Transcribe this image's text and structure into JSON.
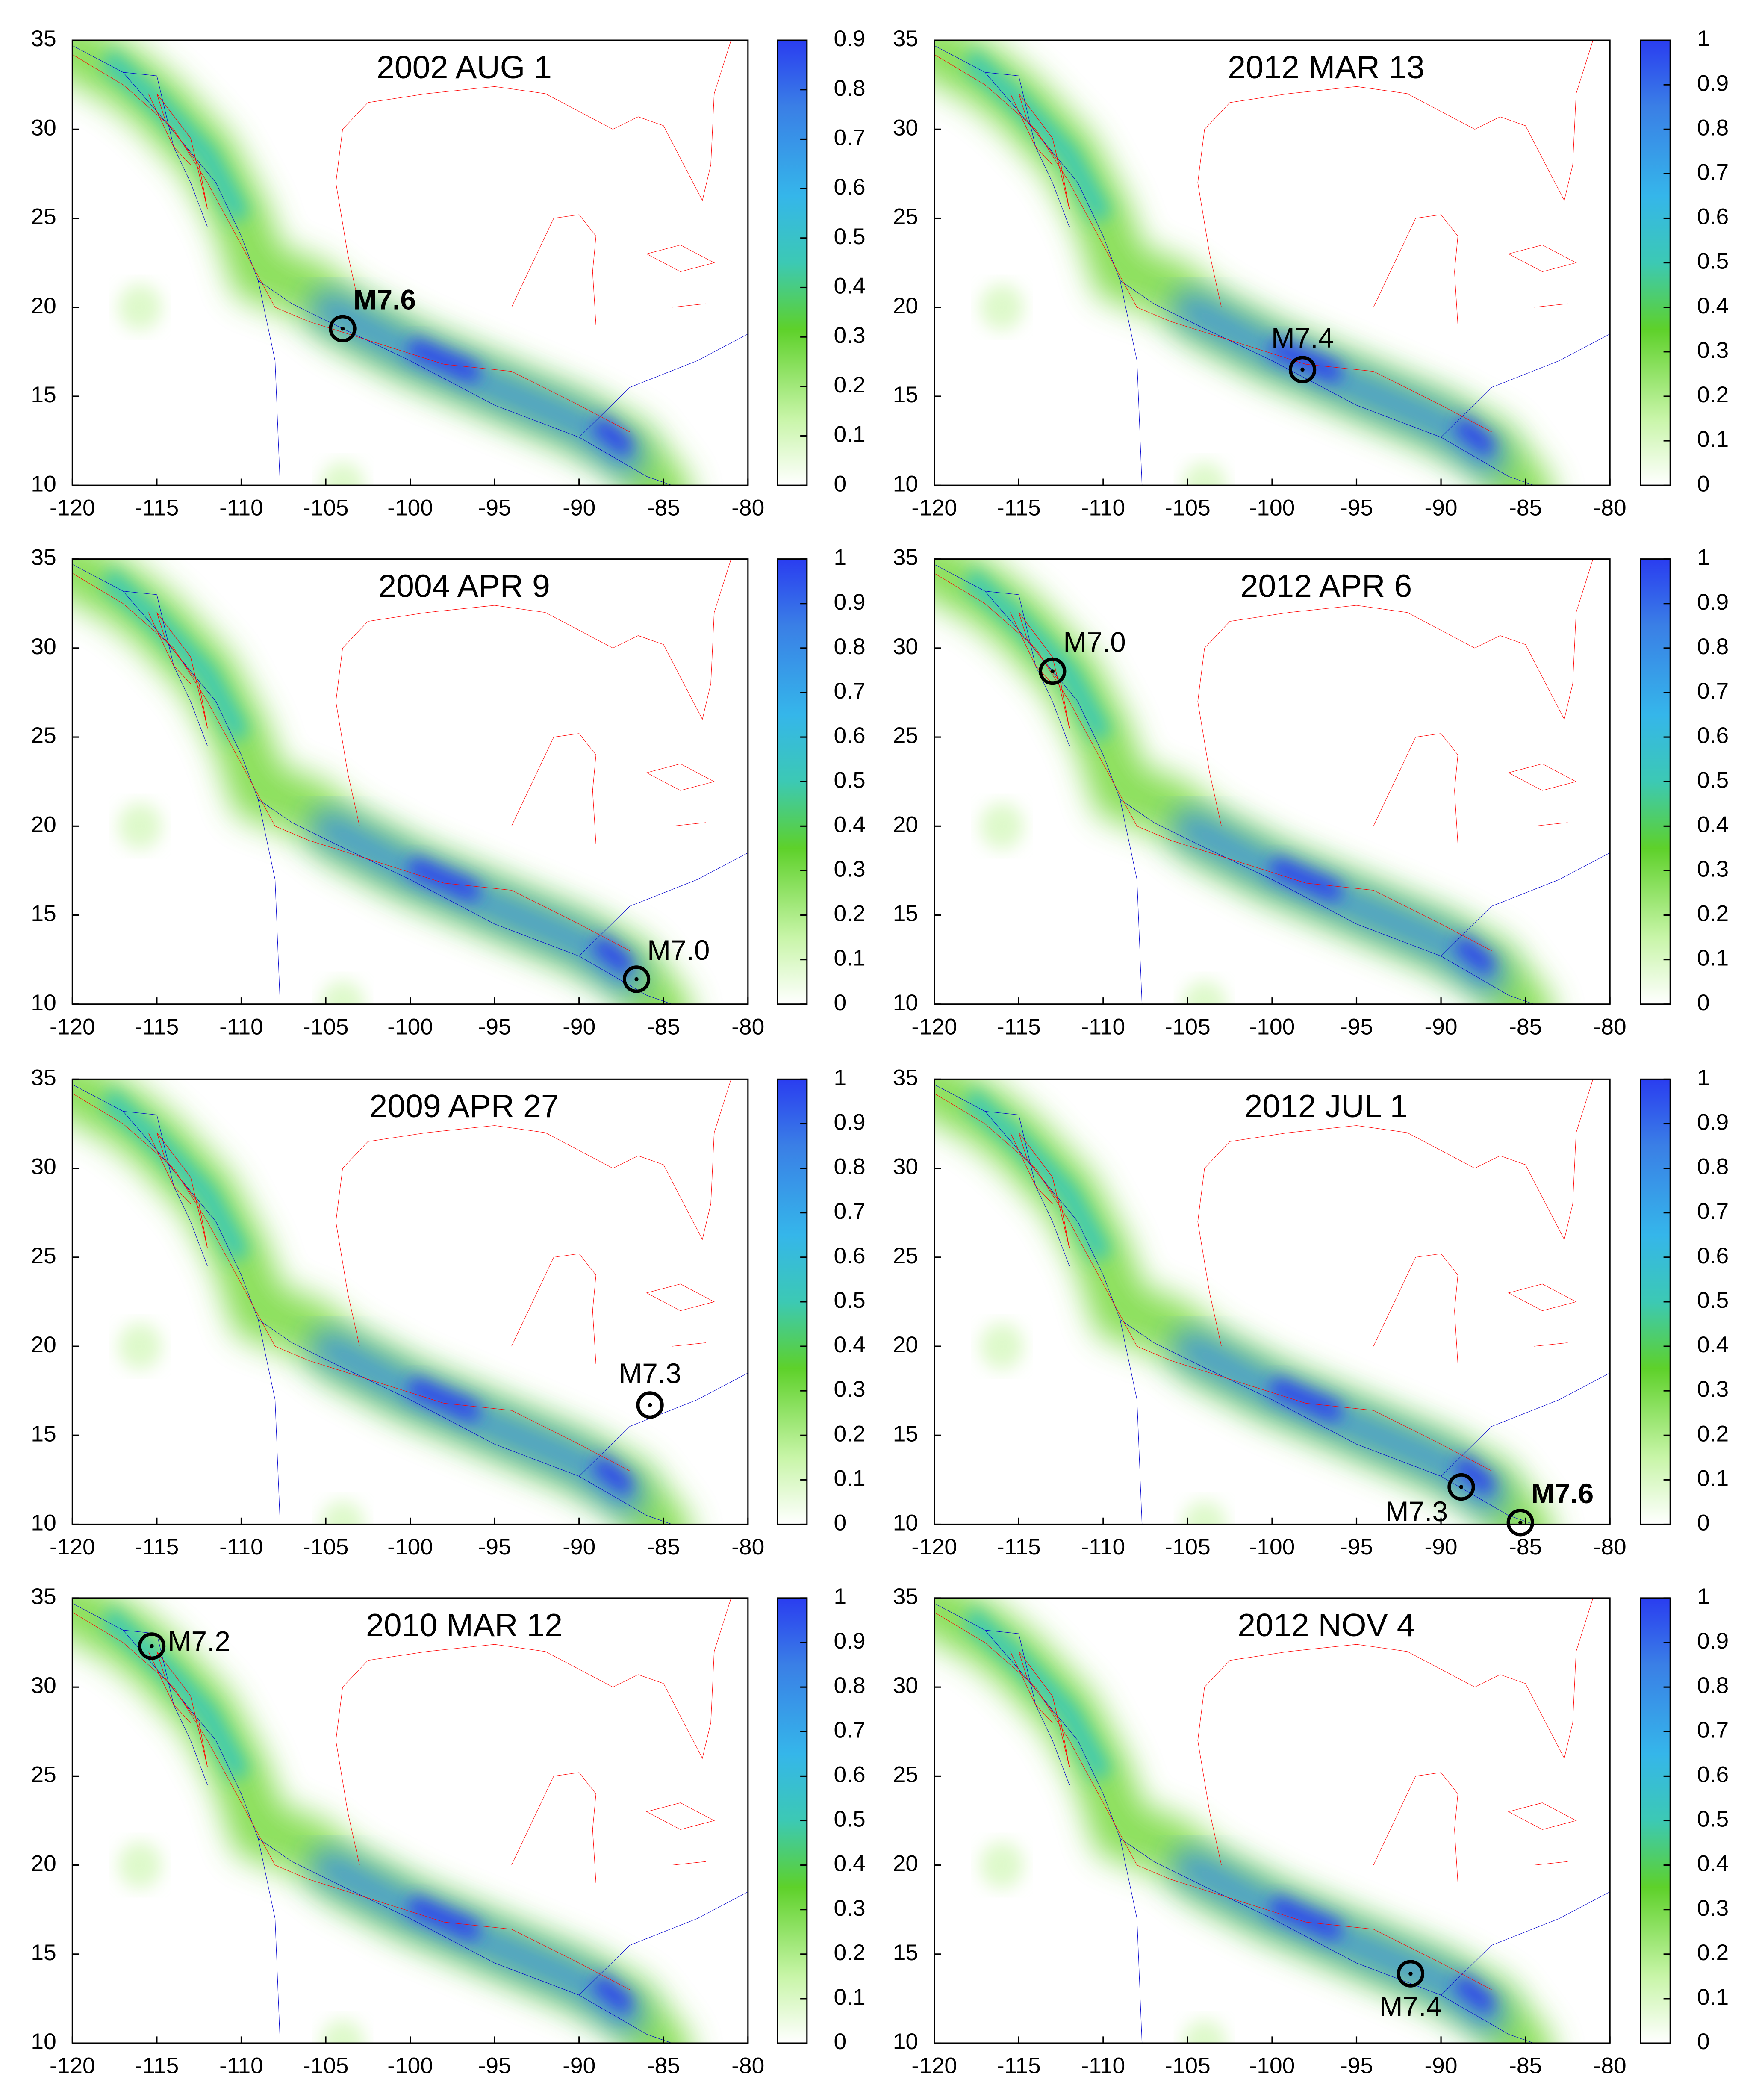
{
  "chart_data": [
    {
      "type": "heatmap-map",
      "title": "2002 AUG 1",
      "xlim": [
        -120,
        -80
      ],
      "ylim": [
        10,
        35
      ],
      "xticks": [
        -120,
        -115,
        -110,
        -105,
        -100,
        -95,
        -90,
        -85,
        -80
      ],
      "yticks": [
        10,
        15,
        20,
        25,
        30,
        35
      ],
      "clim": [
        0,
        0.9
      ],
      "cticks": [
        0,
        0.1,
        0.2,
        0.3,
        0.4,
        0.5,
        0.6,
        0.7,
        0.8,
        0.9
      ],
      "events": [
        {
          "label": "M7.6",
          "lon": -104,
          "lat": 18.8,
          "bold": true,
          "label_position": "above-right"
        }
      ]
    },
    {
      "type": "heatmap-map",
      "title": "2004 APR 9",
      "xlim": [
        -120,
        -80
      ],
      "ylim": [
        10,
        35
      ],
      "xticks": [
        -120,
        -115,
        -110,
        -105,
        -100,
        -95,
        -90,
        -85,
        -80
      ],
      "yticks": [
        10,
        15,
        20,
        25,
        30,
        35
      ],
      "clim": [
        0,
        1
      ],
      "cticks": [
        0,
        0.1,
        0.2,
        0.3,
        0.4,
        0.5,
        0.6,
        0.7,
        0.8,
        0.9,
        1
      ],
      "events": [
        {
          "label": "M7.0",
          "lon": -86.6,
          "lat": 11.4,
          "bold": false,
          "label_position": "above-right"
        }
      ]
    },
    {
      "type": "heatmap-map",
      "title": "2009 APR 27",
      "xlim": [
        -120,
        -80
      ],
      "ylim": [
        10,
        35
      ],
      "xticks": [
        -120,
        -115,
        -110,
        -105,
        -100,
        -95,
        -90,
        -85,
        -80
      ],
      "yticks": [
        10,
        15,
        20,
        25,
        30,
        35
      ],
      "clim": [
        0,
        1
      ],
      "cticks": [
        0,
        0.1,
        0.2,
        0.3,
        0.4,
        0.5,
        0.6,
        0.7,
        0.8,
        0.9,
        1
      ],
      "events": [
        {
          "label": "M7.3",
          "lon": -85.8,
          "lat": 16.7,
          "bold": false,
          "label_position": "above"
        }
      ]
    },
    {
      "type": "heatmap-map",
      "title": "2010 MAR 12",
      "xlim": [
        -120,
        -80
      ],
      "ylim": [
        10,
        35
      ],
      "xticks": [
        -120,
        -115,
        -110,
        -105,
        -100,
        -95,
        -90,
        -85,
        -80
      ],
      "yticks": [
        10,
        15,
        20,
        25,
        30,
        35
      ],
      "clim": [
        0,
        1
      ],
      "cticks": [
        0,
        0.1,
        0.2,
        0.3,
        0.4,
        0.5,
        0.6,
        0.7,
        0.8,
        0.9,
        1
      ],
      "events": [
        {
          "label": "M7.2",
          "lon": -115.3,
          "lat": 32.3,
          "bold": false,
          "label_position": "right"
        }
      ]
    },
    {
      "type": "heatmap-map",
      "title": "2012 MAR 13",
      "xlim": [
        -120,
        -80
      ],
      "ylim": [
        10,
        35
      ],
      "xticks": [
        -120,
        -115,
        -110,
        -105,
        -100,
        -95,
        -90,
        -85,
        -80
      ],
      "yticks": [
        10,
        15,
        20,
        25,
        30,
        35
      ],
      "clim": [
        0,
        1
      ],
      "cticks": [
        0,
        0.1,
        0.2,
        0.3,
        0.4,
        0.5,
        0.6,
        0.7,
        0.8,
        0.9,
        1
      ],
      "events": [
        {
          "label": "M7.4",
          "lon": -98.2,
          "lat": 16.5,
          "bold": false,
          "label_position": "above"
        }
      ]
    },
    {
      "type": "heatmap-map",
      "title": "2012 APR 6",
      "xlim": [
        -120,
        -80
      ],
      "ylim": [
        10,
        35
      ],
      "xticks": [
        -120,
        -115,
        -110,
        -105,
        -100,
        -95,
        -90,
        -85,
        -80
      ],
      "yticks": [
        10,
        15,
        20,
        25,
        30,
        35
      ],
      "clim": [
        0,
        1
      ],
      "cticks": [
        0,
        0.1,
        0.2,
        0.3,
        0.4,
        0.5,
        0.6,
        0.7,
        0.8,
        0.9,
        1
      ],
      "events": [
        {
          "label": "M7.0",
          "lon": -113,
          "lat": 28.7,
          "bold": false,
          "label_position": "above-right"
        }
      ]
    },
    {
      "type": "heatmap-map",
      "title": "2012 JUL 1",
      "xlim": [
        -120,
        -80
      ],
      "ylim": [
        10,
        35
      ],
      "xticks": [
        -120,
        -115,
        -110,
        -105,
        -100,
        -95,
        -90,
        -85,
        -80
      ],
      "yticks": [
        10,
        15,
        20,
        25,
        30,
        35
      ],
      "clim": [
        0,
        1
      ],
      "cticks": [
        0,
        0.1,
        0.2,
        0.3,
        0.4,
        0.5,
        0.6,
        0.7,
        0.8,
        0.9,
        1
      ],
      "events": [
        {
          "label": "M7.3",
          "lon": -88.8,
          "lat": 12.1,
          "bold": false,
          "label_position": "below-left"
        },
        {
          "label": "M7.6",
          "lon": -85.3,
          "lat": 10.1,
          "bold": true,
          "label_position": "above-right"
        }
      ]
    },
    {
      "type": "heatmap-map",
      "title": "2012 NOV 4",
      "xlim": [
        -120,
        -80
      ],
      "ylim": [
        10,
        35
      ],
      "xticks": [
        -120,
        -115,
        -110,
        -105,
        -100,
        -95,
        -90,
        -85,
        -80
      ],
      "yticks": [
        10,
        15,
        20,
        25,
        30,
        35
      ],
      "clim": [
        0,
        1
      ],
      "cticks": [
        0,
        0.1,
        0.2,
        0.3,
        0.4,
        0.5,
        0.6,
        0.7,
        0.8,
        0.9,
        1
      ],
      "events": [
        {
          "label": "M7.4",
          "lon": -91.8,
          "lat": 13.9,
          "bold": false,
          "label_position": "below"
        }
      ]
    }
  ]
}
